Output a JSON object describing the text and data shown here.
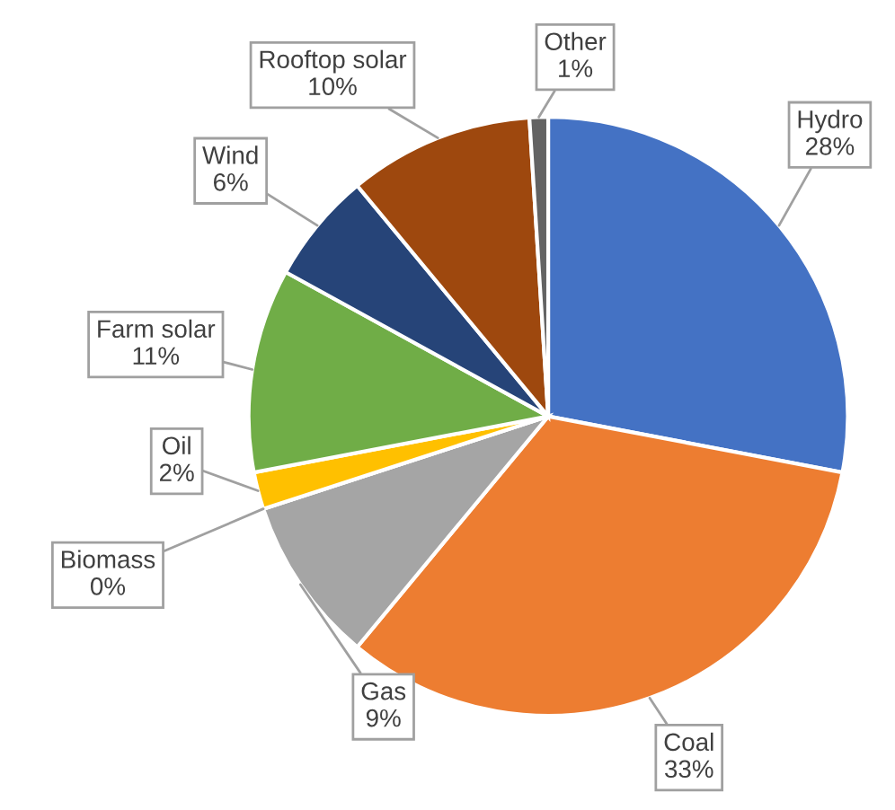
{
  "chart_data": {
    "type": "pie",
    "categories": [
      "Hydro",
      "Coal",
      "Gas",
      "Biomass",
      "Oil",
      "Farm solar",
      "Wind",
      "Rooftop solar",
      "Other"
    ],
    "values": [
      28,
      33,
      9,
      0,
      2,
      11,
      6,
      10,
      1
    ],
    "value_labels": [
      "28%",
      "33%",
      "9%",
      "0%",
      "2%",
      "11%",
      "6%",
      "10%",
      "1%"
    ],
    "colors": [
      "#4472c4",
      "#ed7d31",
      "#a5a5a5",
      "#5b9bd5",
      "#ffc000",
      "#70ad47",
      "#264478",
      "#9e480e",
      "#636363"
    ],
    "legend": false
  }
}
